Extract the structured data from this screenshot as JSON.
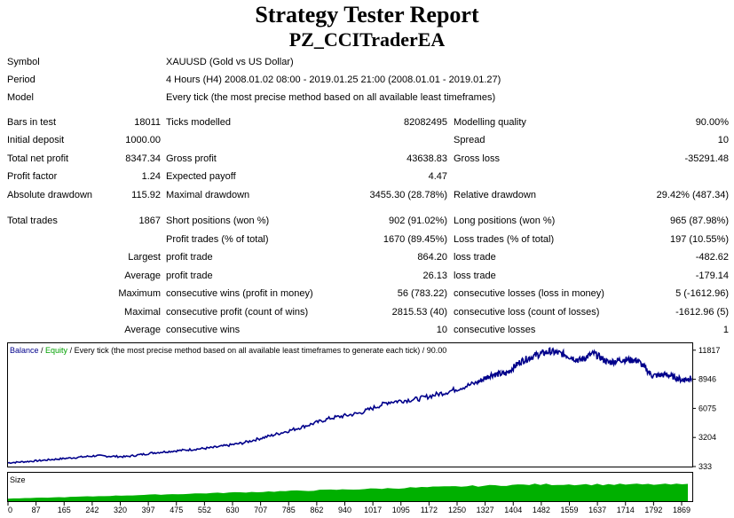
{
  "report": {
    "title": "Strategy Tester Report",
    "ea_name": "PZ_CCITraderEA"
  },
  "info": [
    {
      "label": "Symbol",
      "value": "XAUUSD (Gold vs US Dollar)"
    },
    {
      "label": "Period",
      "value": "4 Hours (H4) 2008.01.02 08:00 - 2019.01.25 21:00 (2008.01.01 - 2019.01.27)"
    },
    {
      "label": "Model",
      "value": "Every tick (the most precise method based on all available least timeframes)"
    }
  ],
  "stats": {
    "bars_in_test": {
      "label": "Bars in test",
      "value": "18011"
    },
    "ticks_modelled": {
      "label": "Ticks modelled",
      "value": "82082495"
    },
    "modelling_quality": {
      "label": "Modelling quality",
      "value": "90.00%"
    },
    "initial_deposit": {
      "label": "Initial deposit",
      "value": "1000.00"
    },
    "spread": {
      "label": "Spread",
      "value": "10"
    },
    "total_net_profit": {
      "label": "Total net profit",
      "value": "8347.34"
    },
    "gross_profit": {
      "label": "Gross profit",
      "value": "43638.83"
    },
    "gross_loss": {
      "label": "Gross loss",
      "value": "-35291.48"
    },
    "profit_factor": {
      "label": "Profit factor",
      "value": "1.24"
    },
    "expected_payoff": {
      "label": "Expected payoff",
      "value": "4.47"
    },
    "absolute_drawdown": {
      "label": "Absolute drawdown",
      "value": "115.92"
    },
    "maximal_drawdown": {
      "label": "Maximal drawdown",
      "value": "3455.30 (28.78%)"
    },
    "relative_drawdown": {
      "label": "Relative drawdown",
      "value": "29.42% (487.34)"
    },
    "total_trades": {
      "label": "Total trades",
      "value": "1867"
    },
    "short_positions": {
      "label": "Short positions (won %)",
      "value": "902 (91.02%)"
    },
    "long_positions": {
      "label": "Long positions (won %)",
      "value": "965 (87.98%)"
    },
    "profit_trades": {
      "label": "Profit trades (% of total)",
      "value": "1670 (89.45%)"
    },
    "loss_trades": {
      "label": "Loss trades (% of total)",
      "value": "197 (10.55%)"
    },
    "largest": {
      "prefix": "Largest",
      "profit_label": "profit trade",
      "profit_value": "864.20",
      "loss_label": "loss trade",
      "loss_value": "-482.62"
    },
    "average": {
      "prefix": "Average",
      "profit_label": "profit trade",
      "profit_value": "26.13",
      "loss_label": "loss trade",
      "loss_value": "-179.14"
    },
    "maximum": {
      "prefix": "Maximum",
      "profit_label": "consecutive wins (profit in money)",
      "profit_value": "56 (783.22)",
      "loss_label": "consecutive losses (loss in money)",
      "loss_value": "5 (-1612.96)"
    },
    "maximal": {
      "prefix": "Maximal",
      "profit_label": "consecutive profit (count of wins)",
      "profit_value": "2815.53 (40)",
      "loss_label": "consecutive loss (count of losses)",
      "loss_value": "-1612.96 (5)"
    },
    "average_consec": {
      "prefix": "Average",
      "profit_label": "consecutive wins",
      "profit_value": "10",
      "loss_label": "consecutive losses",
      "loss_value": "1"
    }
  },
  "chart_legend": {
    "balance": "Balance",
    "sep1": " / ",
    "equity": "Equity",
    "rest": " / Every tick (the most precise method based on all available least timeframes to generate each tick) / 90.00",
    "size": "Size"
  },
  "colors": {
    "balance": "#00008b",
    "equity": "#00a000",
    "size": "#00b000"
  },
  "chart_data": {
    "type": "line",
    "series": [
      {
        "name": "Balance / Equity"
      }
    ],
    "x": [
      0,
      80,
      160,
      240,
      320,
      400,
      480,
      560,
      640,
      720,
      800,
      880,
      960,
      1040,
      1120,
      1200,
      1280,
      1320,
      1360,
      1400,
      1440,
      1480,
      1520,
      1560,
      1600,
      1640,
      1680,
      1720,
      1760,
      1800,
      1840,
      1867
    ],
    "values": [
      700,
      900,
      1150,
      1400,
      1300,
      1700,
      1950,
      2200,
      2650,
      3400,
      4200,
      5100,
      5600,
      6700,
      7000,
      7700,
      8600,
      9400,
      9500,
      10700,
      11300,
      11700,
      11400,
      10800,
      11500,
      10600,
      10900,
      10800,
      9300,
      9400,
      8900,
      9050
    ],
    "size_fraction": 0.62,
    "y_ticks": [
      11817,
      8946,
      6075,
      3204,
      333
    ],
    "ylim": [
      333,
      12500
    ],
    "x_ticks": [
      "0",
      "87",
      "165",
      "242",
      "320",
      "397",
      "475",
      "552",
      "630",
      "707",
      "785",
      "862",
      "940",
      "1017",
      "1095",
      "1172",
      "1250",
      "1327",
      "1404",
      "1482",
      "1559",
      "1637",
      "1714",
      "1792",
      "1869"
    ],
    "xlim": [
      0,
      1869
    ]
  }
}
